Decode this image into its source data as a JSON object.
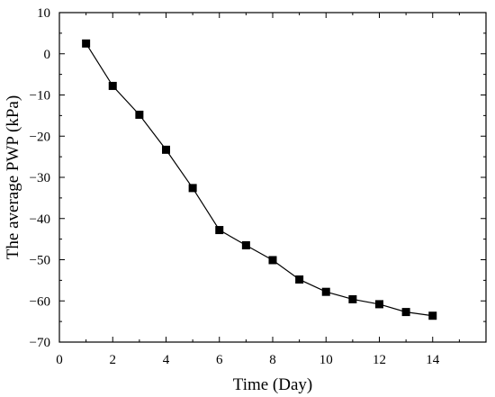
{
  "chart_data": {
    "type": "line",
    "title": "",
    "xlabel": "Time (Day)",
    "ylabel": "The average PWP (kPa)",
    "xlim": [
      0,
      16
    ],
    "ylim": [
      -70,
      10
    ],
    "x_ticks": [
      0,
      2,
      4,
      6,
      8,
      10,
      12,
      14
    ],
    "y_ticks": [
      10,
      0,
      -10,
      -20,
      -30,
      -40,
      -50,
      -60,
      -70
    ],
    "x_tick_labels": [
      "0",
      "2",
      "4",
      "6",
      "8",
      "10",
      "12",
      "14"
    ],
    "y_tick_labels": [
      "10",
      "0",
      "−10",
      "−20",
      "−30",
      "−40",
      "−50",
      "−60",
      "−70"
    ],
    "grid": false,
    "marker": "square",
    "series": [
      {
        "x": [
          1,
          2,
          3,
          4,
          5,
          6,
          7,
          8,
          9,
          10,
          11,
          12,
          13,
          14
        ],
        "y": [
          2.5,
          -7.8,
          -14.8,
          -23.3,
          -32.6,
          -42.8,
          -46.5,
          -50.1,
          -54.8,
          -57.8,
          -59.6,
          -60.8,
          -62.7,
          -63.6
        ]
      }
    ]
  },
  "colors": {
    "line": "#000000",
    "marker": "#000000",
    "axis": "#000000",
    "background": "#ffffff"
  }
}
